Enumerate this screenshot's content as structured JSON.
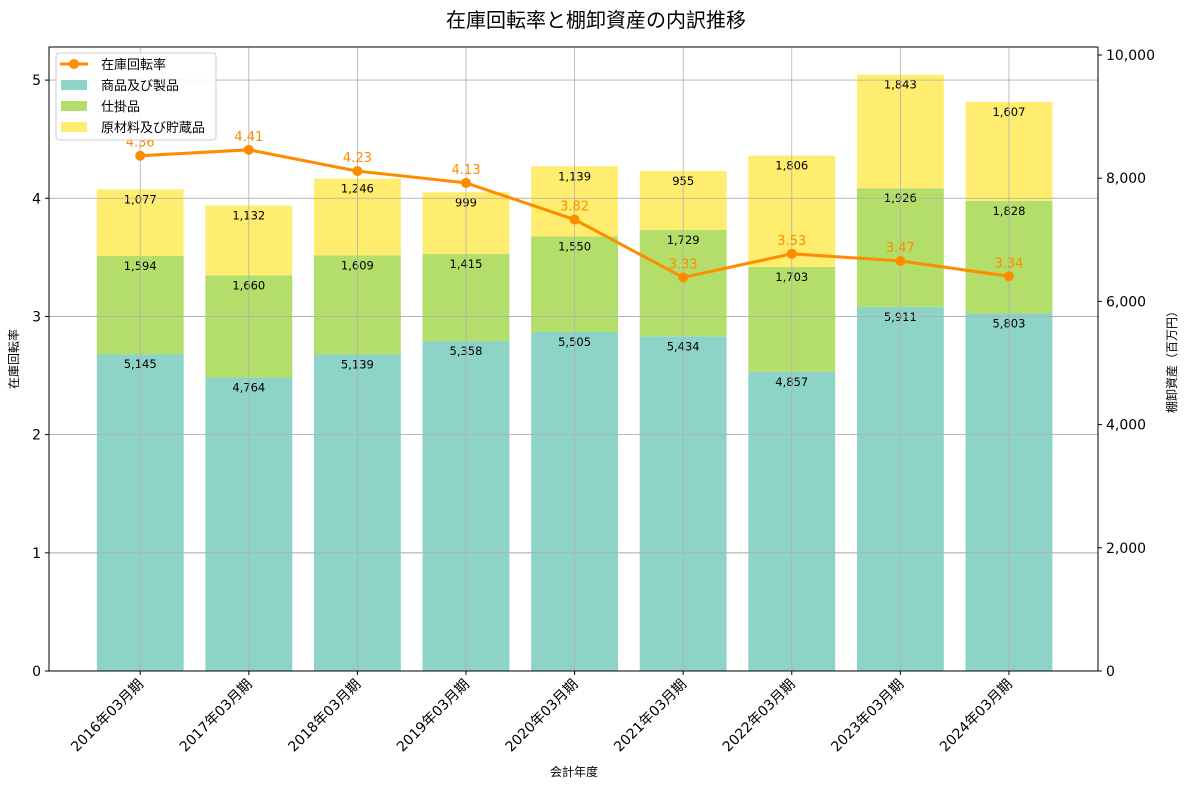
{
  "chart_data": {
    "type": "bar",
    "stacked": true,
    "title": "在庫回転率と棚卸資産の内訳推移",
    "xlabel": "会計年度",
    "ylabel_left": "在庫回転率",
    "ylabel_right": "棚卸資産（百万円）",
    "categories": [
      "2016年03月期",
      "2017年03月期",
      "2018年03月期",
      "2019年03月期",
      "2020年03月期",
      "2021年03月期",
      "2022年03月期",
      "2023年03月期",
      "2024年03月期"
    ],
    "series": [
      {
        "name": "商品及び製品",
        "axis": "right",
        "color": "#8dd3c7",
        "values": [
          5145,
          4764,
          5139,
          5358,
          5505,
          5434,
          4857,
          5911,
          5803
        ]
      },
      {
        "name": "仕掛品",
        "axis": "right",
        "color": "#b3de69",
        "values": [
          1594,
          1660,
          1609,
          1415,
          1550,
          1729,
          1703,
          1926,
          1828
        ]
      },
      {
        "name": "原材料及び貯蔵品",
        "axis": "right",
        "color": "#ffed6f",
        "values": [
          1077,
          1132,
          1246,
          999,
          1139,
          955,
          1806,
          1843,
          1607
        ]
      }
    ],
    "line": {
      "name": "在庫回転率",
      "axis": "left",
      "color": "#ff8c00",
      "values": [
        4.36,
        4.41,
        4.23,
        4.13,
        3.82,
        3.33,
        3.53,
        3.47,
        3.34
      ]
    },
    "ylim_left": [
      0,
      5.28
    ],
    "ylim_right": [
      0,
      10130
    ],
    "yticks_left": [
      "0",
      "1",
      "2",
      "3",
      "4",
      "5"
    ],
    "yticks_right": [
      "0",
      "2,000",
      "4,000",
      "6,000",
      "8,000",
      "10,000"
    ],
    "grid": true,
    "legend": "top-left"
  }
}
